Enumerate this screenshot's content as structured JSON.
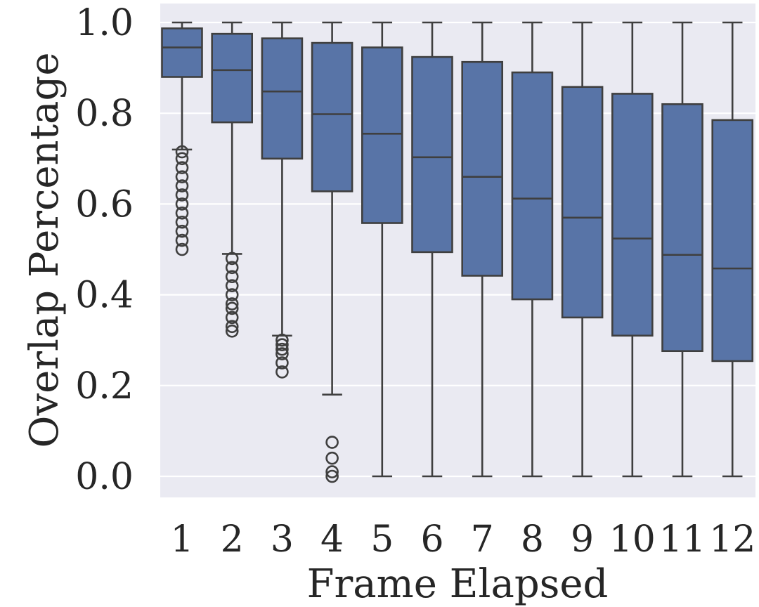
{
  "chart_data": {
    "type": "box",
    "xlabel": "Frame Elapsed",
    "ylabel": "Overlap Percentage",
    "ylim": [
      -0.045,
      1.05
    ],
    "yticks": [
      0.0,
      0.2,
      0.4,
      0.6,
      0.8,
      1.0
    ],
    "ytick_labels": [
      "0.0",
      "0.2",
      "0.4",
      "0.6",
      "0.8",
      "1.0"
    ],
    "grid": true,
    "categories": [
      "1",
      "2",
      "3",
      "4",
      "5",
      "6",
      "7",
      "8",
      "9",
      "10",
      "11",
      "12"
    ],
    "boxes": [
      {
        "category": "1",
        "whisker_low": 0.72,
        "q1": 0.88,
        "median": 0.945,
        "q3": 0.987,
        "whisker_high": 1.0,
        "outliers": [
          0.5,
          0.52,
          0.54,
          0.56,
          0.58,
          0.6,
          0.62,
          0.64,
          0.66,
          0.68,
          0.7,
          0.715
        ]
      },
      {
        "category": "2",
        "whisker_low": 0.49,
        "q1": 0.78,
        "median": 0.895,
        "q3": 0.975,
        "whisker_high": 1.0,
        "outliers": [
          0.32,
          0.33,
          0.35,
          0.37,
          0.38,
          0.4,
          0.42,
          0.44,
          0.46,
          0.48
        ]
      },
      {
        "category": "3",
        "whisker_low": 0.31,
        "q1": 0.7,
        "median": 0.848,
        "q3": 0.965,
        "whisker_high": 1.0,
        "outliers": [
          0.23,
          0.25,
          0.27,
          0.28,
          0.29,
          0.3
        ]
      },
      {
        "category": "4",
        "whisker_low": 0.18,
        "q1": 0.628,
        "median": 0.798,
        "q3": 0.955,
        "whisker_high": 1.0,
        "outliers": [
          0.0,
          0.01,
          0.04,
          0.075
        ]
      },
      {
        "category": "5",
        "whisker_low": 0.0,
        "q1": 0.558,
        "median": 0.755,
        "q3": 0.945,
        "whisker_high": 1.0,
        "outliers": []
      },
      {
        "category": "6",
        "whisker_low": 0.0,
        "q1": 0.494,
        "median": 0.703,
        "q3": 0.924,
        "whisker_high": 1.0,
        "outliers": []
      },
      {
        "category": "7",
        "whisker_low": 0.0,
        "q1": 0.442,
        "median": 0.66,
        "q3": 0.913,
        "whisker_high": 1.0,
        "outliers": []
      },
      {
        "category": "8",
        "whisker_low": 0.0,
        "q1": 0.39,
        "median": 0.612,
        "q3": 0.89,
        "whisker_high": 1.0,
        "outliers": []
      },
      {
        "category": "9",
        "whisker_low": 0.0,
        "q1": 0.35,
        "median": 0.57,
        "q3": 0.858,
        "whisker_high": 1.0,
        "outliers": []
      },
      {
        "category": "10",
        "whisker_low": 0.0,
        "q1": 0.31,
        "median": 0.524,
        "q3": 0.843,
        "whisker_high": 1.0,
        "outliers": []
      },
      {
        "category": "11",
        "whisker_low": 0.0,
        "q1": 0.276,
        "median": 0.488,
        "q3": 0.82,
        "whisker_high": 1.0,
        "outliers": []
      },
      {
        "category": "12",
        "whisker_low": 0.0,
        "q1": 0.254,
        "median": 0.458,
        "q3": 0.785,
        "whisker_high": 1.0,
        "outliers": []
      }
    ],
    "colors": {
      "box_fill": "#5874a7",
      "box_edge": "#3f3f3f",
      "plot_background": "#eaeaf2",
      "grid": "#ffffff",
      "text": "#262626"
    }
  }
}
